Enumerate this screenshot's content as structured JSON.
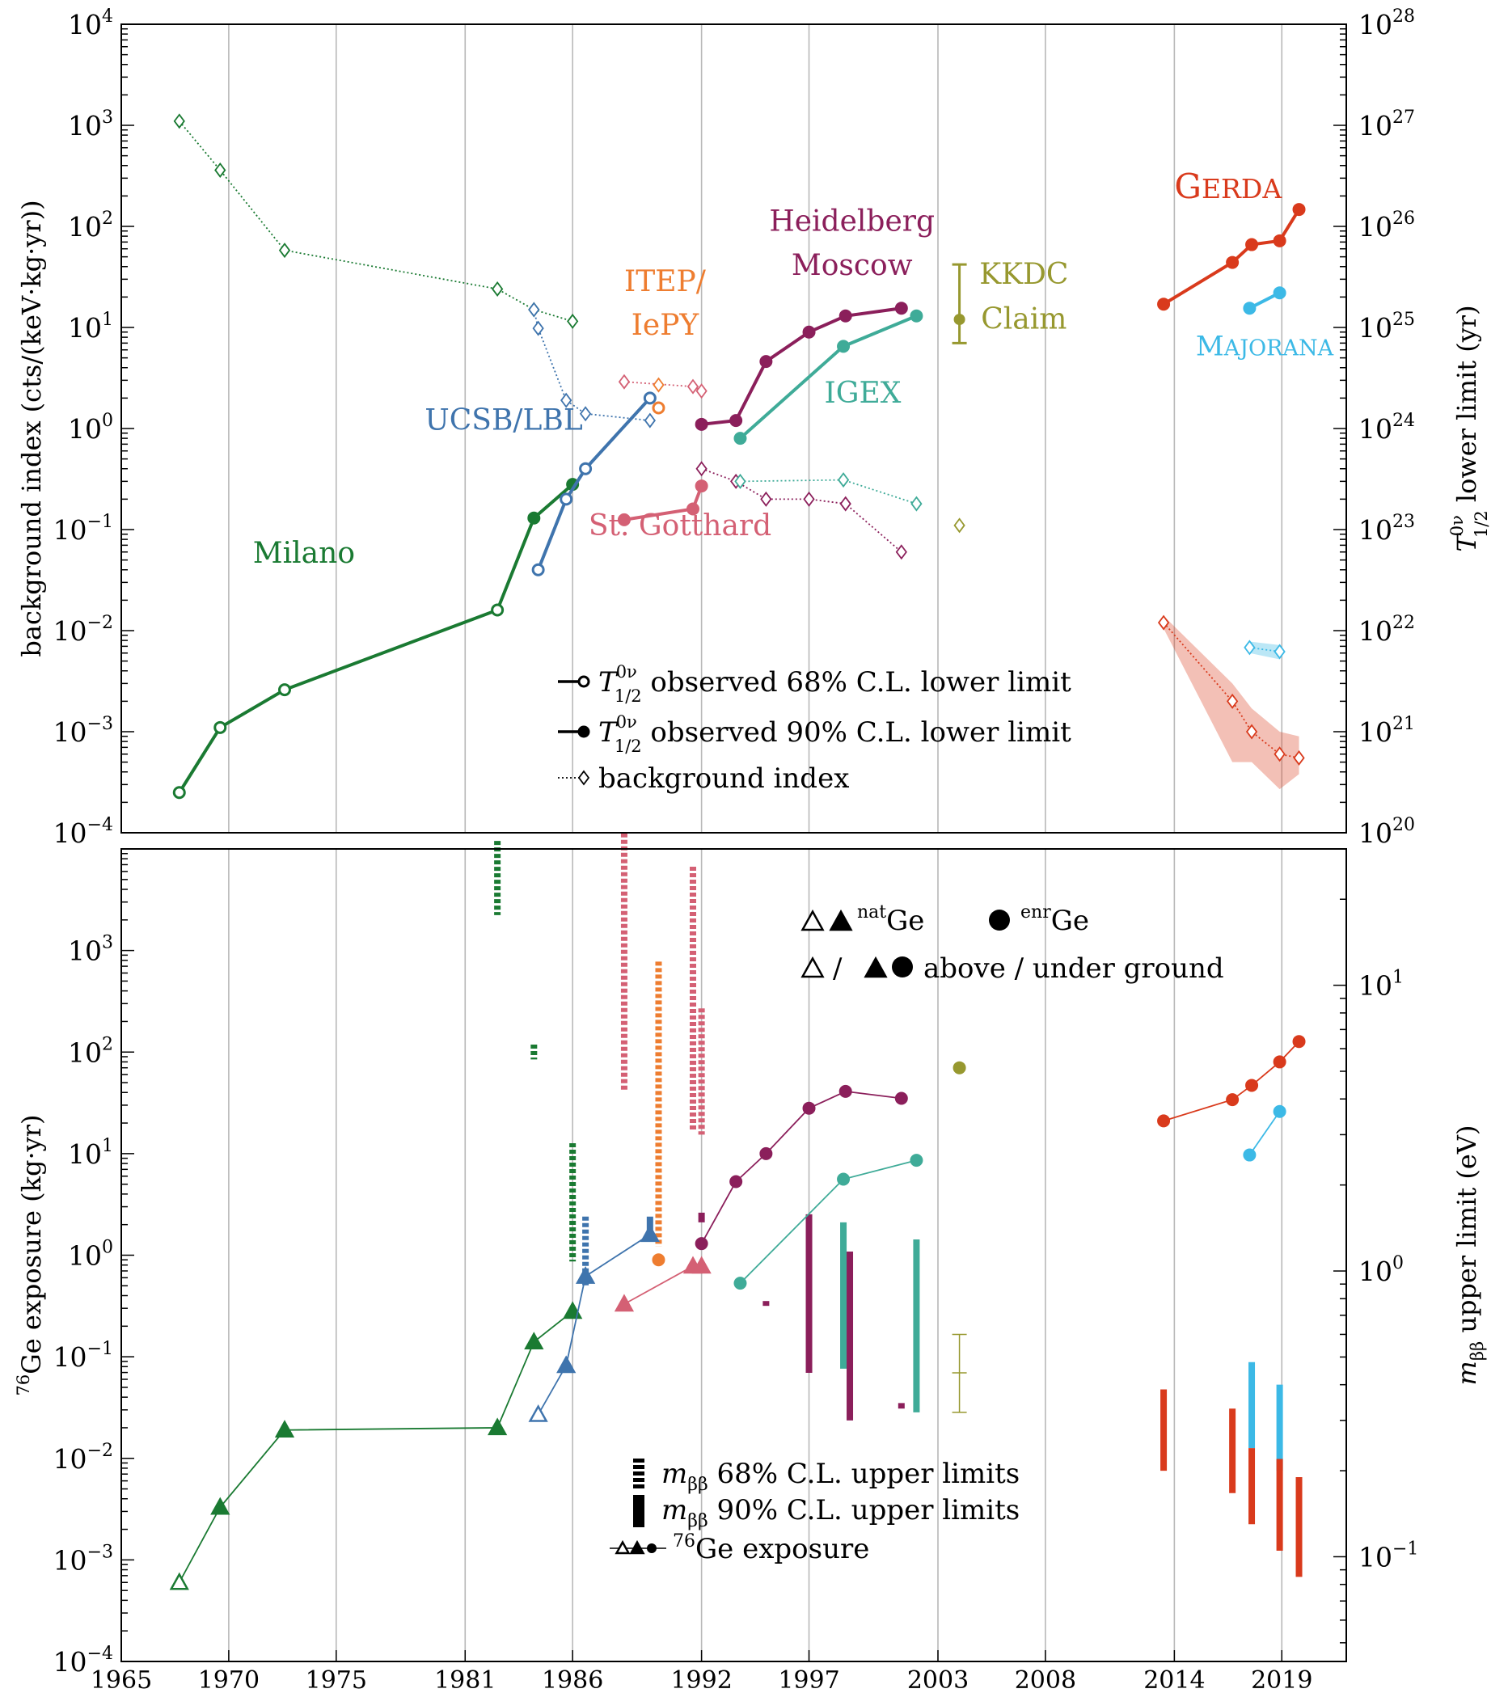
{
  "colors": {
    "milano": "#1a7a32",
    "ucsb": "#3f74ad",
    "itep": "#ee7d30",
    "gotthard": "#d46074",
    "hdm": "#8b1f5b",
    "igex": "#3fab98",
    "kkdc": "#97982f",
    "gerda": "#d93a1c",
    "majorana": "#3cb9e6",
    "grid": "#b8b8b8"
  },
  "chart_data": [
    {
      "type": "line",
      "panel": "top",
      "x_range": [
        1965,
        2022
      ],
      "grid": "vertical",
      "y_left_label": "background index (cts/(keV·kg·yr))",
      "y_left_range": [
        0.0001,
        10000
      ],
      "y_left_scale": "log",
      "y_left_ticks": [
        {
          "b": "10",
          "e": "−4"
        },
        {
          "b": "10",
          "e": "−3"
        },
        {
          "b": "10",
          "e": "−2"
        },
        {
          "b": "10",
          "e": "−1"
        },
        {
          "b": "10",
          "e": "0"
        },
        {
          "b": "10",
          "e": "1"
        },
        {
          "b": "10",
          "e": "2"
        },
        {
          "b": "10",
          "e": "3"
        },
        {
          "b": "10",
          "e": "4"
        }
      ],
      "y_right_label": {
        "main": "T",
        "sup": "0ν",
        "sub": "1/2",
        "rest": " lower limit (yr)"
      },
      "y_right_range": [
        1e+20,
        1e+28
      ],
      "y_right_scale": "log",
      "y_right_ticks": [
        {
          "b": "10",
          "e": "20"
        },
        {
          "b": "10",
          "e": "21"
        },
        {
          "b": "10",
          "e": "22"
        },
        {
          "b": "10",
          "e": "23"
        },
        {
          "b": "10",
          "e": "24"
        },
        {
          "b": "10",
          "e": "25"
        },
        {
          "b": "10",
          "e": "26"
        },
        {
          "b": "10",
          "e": "27"
        },
        {
          "b": "10",
          "e": "28"
        }
      ],
      "experiment_labels": [
        {
          "text": "Milano",
          "color": "milano",
          "x": 1973.5,
          "y": 0.047
        },
        {
          "text": "UCSB/LBL",
          "color": "ucsb",
          "x": 1982.8,
          "y": 0.97
        },
        {
          "text": "ITEP/",
          "color": "itep",
          "x": 1990.3,
          "y": 23
        },
        {
          "text": "IePY",
          "color": "itep",
          "x": 1990.3,
          "y": 8.5
        },
        {
          "text": "St. Gotthard",
          "color": "gotthard",
          "x": 1991,
          "y": 0.088
        },
        {
          "text": "Heidelberg",
          "color": "hdm",
          "x": 1999,
          "y": 90
        },
        {
          "text": "Moscow",
          "color": "hdm",
          "x": 1999,
          "y": 33
        },
        {
          "text": "IGEX",
          "color": "igex",
          "x": 1999.5,
          "y": 1.8
        },
        {
          "text": "KKDC",
          "color": "kkdc",
          "x": 2007,
          "y": 27
        },
        {
          "text": "Claim",
          "color": "kkdc",
          "x": 2007,
          "y": 9.7
        },
        {
          "text": "GERDA",
          "color": "gerda",
          "x": 2016.5,
          "y": 190,
          "smallcaps": true
        },
        {
          "text": "MAJORANA",
          "color": "majorana",
          "x": 2018.2,
          "y": 5.3,
          "smallcaps": true
        }
      ],
      "series": [
        {
          "name": "Milano",
          "color": "milano",
          "x": [
            1967.7,
            1969.6,
            1972.6,
            1982.5,
            1984.2,
            1986
          ],
          "y": [
            2.5e+20,
            1.1e+21,
            2.6e+21,
            1.6e+22,
            1.3e+23,
            2.8e+23
          ],
          "open": [
            true,
            true,
            true,
            true,
            false,
            false
          ],
          "axis": "right"
        },
        {
          "name": "UCSB/LBL",
          "color": "ucsb",
          "x": [
            1984.4,
            1985.7,
            1986.6,
            1989.6
          ],
          "y": [
            4e+22,
            2e+23,
            4e+23,
            2e+24
          ],
          "open": [
            true,
            true,
            true,
            true
          ],
          "axis": "right"
        },
        {
          "name": "ITEP/IePY",
          "color": "itep",
          "x": [
            1990
          ],
          "y": [
            1.6e+24
          ],
          "open": [
            true
          ],
          "axis": "right"
        },
        {
          "name": "St. Gotthard",
          "color": "gotthard",
          "x": [
            1988.4,
            1991.6,
            1992
          ],
          "y": [
            1.25e+23,
            1.6e+23,
            2.7e+23
          ],
          "open": [
            false,
            false,
            false
          ],
          "axis": "right"
        },
        {
          "name": "Heidelberg-Moscow",
          "color": "hdm",
          "x": [
            1992,
            1993.6,
            1995,
            1997,
            1998.7,
            2001.3
          ],
          "y": [
            1.1e+24,
            1.2e+24,
            4.6e+24,
            9e+24,
            1.3e+25,
            1.55e+25
          ],
          "open": [
            false,
            false,
            false,
            false,
            false,
            false
          ],
          "axis": "right"
        },
        {
          "name": "IGEX",
          "color": "igex",
          "x": [
            1993.8,
            1998.6,
            2002
          ],
          "y": [
            8e+23,
            6.5e+24,
            1.3e+25
          ],
          "open": [
            false,
            false,
            false
          ],
          "axis": "right"
        },
        {
          "name": "GERDA",
          "color": "gerda",
          "x": [
            2013.5,
            2016.7,
            2017.6,
            2018.9,
            2019.8
          ],
          "y": [
            1.7e+25,
            4.4e+25,
            6.6e+25,
            7.2e+25,
            1.47e+26
          ],
          "open": [
            false,
            false,
            false,
            false,
            false
          ],
          "axis": "right"
        },
        {
          "name": "MAJORANA",
          "color": "majorana",
          "x": [
            2017.5,
            2018.9
          ],
          "y": [
            1.55e+25,
            2.2e+25
          ],
          "open": [
            false,
            false
          ],
          "axis": "right"
        }
      ],
      "kkdc_claim": {
        "x": 2004,
        "y": 1.2e+25,
        "low": 7e+24,
        "high": 4.2e+25,
        "axis": "right"
      },
      "background_series": [
        {
          "color": "milano",
          "x": [
            1967.7,
            1969.6,
            1972.6,
            1982.5,
            1984.2,
            1986
          ],
          "y": [
            1100,
            360,
            58,
            24,
            15,
            11.5
          ]
        },
        {
          "color": "ucsb",
          "x": [
            1984.2,
            1984.4,
            1985.7,
            1986.6,
            1989.6
          ],
          "y": [
            15,
            9.8,
            1.9,
            1.4,
            1.2
          ]
        },
        {
          "color": "gotthard",
          "x": [
            1988.4,
            1991.6,
            1992
          ],
          "y": [
            2.9,
            2.6,
            2.35
          ]
        },
        {
          "color": "itep",
          "x": [
            1990
          ],
          "y": [
            2.7
          ]
        },
        {
          "color": "hdm",
          "x": [
            1992,
            1993.6,
            1995,
            1997,
            1998.7,
            2001.3
          ],
          "y": [
            0.4,
            0.3,
            0.2,
            0.2,
            0.18,
            0.06
          ]
        },
        {
          "color": "igex",
          "x": [
            1993.8,
            1998.6,
            2002
          ],
          "y": [
            0.3,
            0.31,
            0.18
          ]
        },
        {
          "color": "kkdc",
          "x": [
            2004
          ],
          "y": [
            0.11
          ]
        },
        {
          "color": "gerda",
          "x": [
            2013.5,
            2016.7,
            2017.6,
            2018.9,
            2019.8
          ],
          "y": [
            0.012,
            0.002,
            0.001,
            0.0006,
            0.00055
          ]
        },
        {
          "color": "majorana",
          "x": [
            2017.5,
            2018.9
          ],
          "y": [
            0.0068,
            0.0062
          ]
        }
      ],
      "legend": {
        "position": "lower-center",
        "entries": [
          {
            "main": "T",
            "sup": "0ν",
            "sub": "1/2",
            "rest": " observed 68% C.L. lower limit"
          },
          {
            "main": "T",
            "sup": "0ν",
            "sub": "1/2",
            "rest": " observed 90% C.L. lower limit"
          },
          {
            "main": "background index"
          }
        ]
      }
    },
    {
      "type": "scatter",
      "panel": "bottom",
      "x_range": [
        1965,
        2022
      ],
      "x_ticks": [
        "1965",
        "1970",
        "1975",
        "1981",
        "1986",
        "1992",
        "1997",
        "2003",
        "2008",
        "2014",
        "2019"
      ],
      "grid": "vertical",
      "y_left_label": "Ge exposure (kg·yr)",
      "y_left_label_sup": "76",
      "y_left_range": [
        0.0001,
        10000
      ],
      "y_left_scale": "log",
      "y_left_ticks": [
        {
          "b": "10",
          "e": "−4"
        },
        {
          "b": "10",
          "e": "−3"
        },
        {
          "b": "10",
          "e": "−2"
        },
        {
          "b": "10",
          "e": "−1"
        },
        {
          "b": "10",
          "e": "0"
        },
        {
          "b": "10",
          "e": "1"
        },
        {
          "b": "10",
          "e": "2"
        },
        {
          "b": "10",
          "e": "3"
        }
      ],
      "y_right_label": {
        "main": "m",
        "sub": "ββ",
        "rest": " upper limit (eV)"
      },
      "y_right_range": [
        0.043,
        30
      ],
      "y_right_scale": "log",
      "y_right_ticks": [
        {
          "b": "10",
          "e": "−1"
        },
        {
          "b": "10",
          "e": "0"
        },
        {
          "b": "10",
          "e": "1"
        }
      ],
      "exposure_series": [
        {
          "name": "Milano",
          "color": "milano",
          "marker": "triangle",
          "x": [
            1967.7,
            1969.6,
            1972.6,
            1982.5,
            1984.2,
            1986
          ],
          "y": [
            0.0006,
            0.0033,
            0.019,
            0.02,
            0.14,
            0.28
          ],
          "open": [
            true,
            false,
            false,
            false,
            false,
            false
          ]
        },
        {
          "name": "UCSB/LBL",
          "color": "ucsb",
          "marker": "triangle",
          "x": [
            1984.4,
            1985.7,
            1986.6,
            1989.6
          ],
          "y": [
            0.027,
            0.082,
            0.62,
            1.6
          ],
          "open": [
            true,
            false,
            false,
            false
          ]
        },
        {
          "name": "ITEP/IePY",
          "color": "itep",
          "marker": "circle",
          "x": [
            1990
          ],
          "y": [
            0.9
          ],
          "open": [
            false
          ]
        },
        {
          "name": "St. Gotthard",
          "color": "gotthard",
          "marker": "triangle",
          "x": [
            1988.4,
            1991.6,
            1992
          ],
          "y": [
            0.33,
            0.78,
            0.78
          ],
          "open": [
            false,
            false,
            false
          ]
        },
        {
          "name": "Heidelberg-Moscow",
          "color": "hdm",
          "marker": "circle",
          "x": [
            1992,
            1993.6,
            1995,
            1997,
            1998.7,
            2001.3
          ],
          "y": [
            1.3,
            5.3,
            10,
            28,
            41,
            35
          ],
          "open": [
            false,
            false,
            false,
            false,
            false,
            false
          ]
        },
        {
          "name": "IGEX",
          "color": "igex",
          "marker": "circle",
          "x": [
            1993.8,
            1998.6,
            2002
          ],
          "y": [
            0.53,
            5.6,
            8.6
          ],
          "open": [
            false,
            false,
            false
          ]
        },
        {
          "name": "KKDC",
          "color": "kkdc",
          "marker": "circle",
          "x": [
            2004
          ],
          "y": [
            70
          ],
          "open": [
            false
          ],
          "single": true
        },
        {
          "name": "GERDA",
          "color": "gerda",
          "marker": "circle",
          "x": [
            2013.5,
            2016.7,
            2017.6,
            2018.9,
            2019.8
          ],
          "y": [
            21,
            34,
            47,
            80,
            127
          ],
          "open": [
            false,
            false,
            false,
            false,
            false
          ]
        },
        {
          "name": "MAJORANA",
          "color": "majorana",
          "marker": "circle",
          "x": [
            2017.5,
            2018.9
          ],
          "y": [
            9.7,
            26
          ],
          "open": [
            false,
            false
          ]
        }
      ],
      "mbb_68_bars": [
        {
          "color": "milano",
          "x": 1982.5,
          "low": 17.6,
          "high": 32
        },
        {
          "color": "milano",
          "x": 1984.2,
          "low": 5.5,
          "high": 6.2
        },
        {
          "color": "milano",
          "x": 1986,
          "low": 1.08,
          "high": 2.8
        },
        {
          "color": "ucsb",
          "x": 1986.6,
          "low": 0.89,
          "high": 1.55
        },
        {
          "color": "gotthard",
          "x": 1988.4,
          "low": 4.25,
          "high": 34
        },
        {
          "color": "itep",
          "x": 1990,
          "low": 1.22,
          "high": 12.1
        },
        {
          "color": "gotthard",
          "x": 1991.6,
          "low": 3.1,
          "high": 26
        },
        {
          "color": "gotthard",
          "x": 1992,
          "low": 3,
          "high": 8.3
        }
      ],
      "mbb_90_bars": [
        {
          "color": "ucsb",
          "x": 1989.6,
          "low": 1.35,
          "high": 1.55
        },
        {
          "color": "hdm",
          "x": 1992,
          "low": 1.48,
          "high": 1.6
        },
        {
          "color": "hdm",
          "x": 1995,
          "low": 0.755,
          "high": 0.785
        },
        {
          "color": "hdm",
          "x": 1997,
          "low": 0.44,
          "high": 1.58
        },
        {
          "color": "igex",
          "x": 1998.6,
          "low": 0.455,
          "high": 1.48
        },
        {
          "color": "hdm",
          "x": 1998.9,
          "low": 0.3,
          "high": 1.17
        },
        {
          "color": "hdm",
          "x": 2001.3,
          "low": 0.33,
          "high": 0.345
        },
        {
          "color": "igex",
          "x": 2002,
          "low": 0.32,
          "high": 1.29
        },
        {
          "color": "gerda",
          "x": 2013.5,
          "low": 0.2,
          "high": 0.385
        },
        {
          "color": "gerda",
          "x": 2016.7,
          "low": 0.167,
          "high": 0.33
        },
        {
          "color": "majorana",
          "x": 2017.6,
          "low": 0.24,
          "high": 0.48
        },
        {
          "color": "gerda",
          "x": 2017.6,
          "low": 0.13,
          "high": 0.24
        },
        {
          "color": "majorana",
          "x": 2018.9,
          "low": 0.2,
          "high": 0.4
        },
        {
          "color": "gerda",
          "x": 2018.9,
          "low": 0.105,
          "high": 0.22
        },
        {
          "color": "gerda",
          "x": 2019.8,
          "low": 0.085,
          "high": 0.19
        }
      ],
      "kkdc_mbb": {
        "x": 2004,
        "value": 0.44,
        "low": 0.32,
        "high": 0.6
      },
      "legend_top": {
        "position": "top-center",
        "line1": {
          "nat_sup": "nat",
          "nat_text": "Ge",
          "enr_sup": "enr",
          "enr_text": "Ge"
        },
        "line2": {
          "slash": "/",
          "text": "above / under ground"
        }
      },
      "legend_bottom": {
        "position": "bottom-center",
        "entries": [
          {
            "main": "m",
            "sub": "ββ",
            "rest": " 68% C.L. upper limits"
          },
          {
            "main": "m",
            "sub": "ββ",
            "rest": " 90% C.L. upper limits"
          },
          {
            "sup": "76",
            "rest": "Ge exposure"
          }
        ]
      }
    }
  ]
}
